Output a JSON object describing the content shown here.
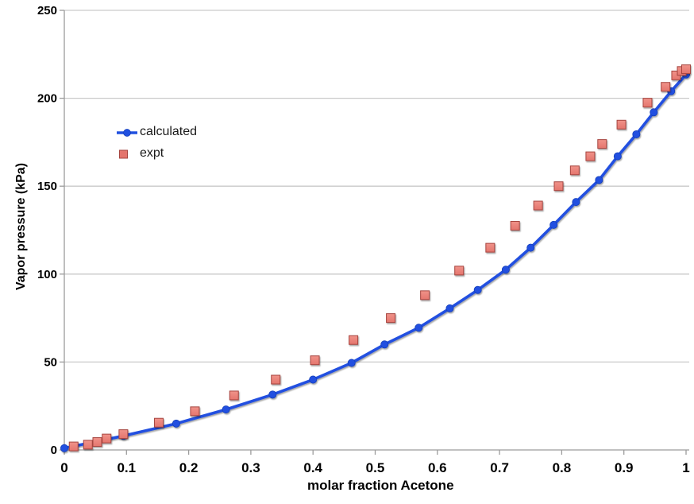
{
  "colors": {
    "calculated": "#2050E0",
    "calculated_edge": "#163FB8",
    "expt_fill": "#E4756D",
    "expt_fill_light": "#F0938A",
    "expt_border": "#A6453F",
    "gridline": "#C9C9C9",
    "axis": "#9C9C9C",
    "text": "#000000"
  },
  "chart_data": {
    "type": "scatter",
    "title": "",
    "xlabel": "molar fraction Acetone",
    "ylabel": "Vapor pressure (kPa)",
    "xlim": [
      0,
      1
    ],
    "ylim": [
      0,
      250
    ],
    "grid": "horizontal-only",
    "legend_position": "inside-upper-left",
    "x_ticks": [
      {
        "label": "0",
        "value": 0
      },
      {
        "label": "0.1",
        "value": 0.1
      },
      {
        "label": "0.2",
        "value": 0.2
      },
      {
        "label": "0.3",
        "value": 0.3
      },
      {
        "label": "0.4",
        "value": 0.4
      },
      {
        "label": "0.5",
        "value": 0.5
      },
      {
        "label": "0.6",
        "value": 0.6
      },
      {
        "label": "0.7",
        "value": 0.7
      },
      {
        "label": "0.8",
        "value": 0.8
      },
      {
        "label": "0.9",
        "value": 0.9
      },
      {
        "label": "1",
        "value": 1
      }
    ],
    "y_ticks": [
      {
        "label": "0",
        "value": 0
      },
      {
        "label": "50",
        "value": 50
      },
      {
        "label": "100",
        "value": 100
      },
      {
        "label": "150",
        "value": 150
      },
      {
        "label": "200",
        "value": 200
      },
      {
        "label": "250",
        "value": 250
      }
    ],
    "series": [
      {
        "name": "calculated",
        "type": "line",
        "marker": "circle",
        "color": "#2050E0",
        "points": [
          [
            0,
            1
          ],
          [
            0.095,
            8
          ],
          [
            0.18,
            15
          ],
          [
            0.26,
            23
          ],
          [
            0.335,
            31.5
          ],
          [
            0.4,
            40
          ],
          [
            0.462,
            49.5
          ],
          [
            0.515,
            60
          ],
          [
            0.57,
            69.5
          ],
          [
            0.62,
            80.5
          ],
          [
            0.665,
            91
          ],
          [
            0.71,
            102.5
          ],
          [
            0.75,
            115
          ],
          [
            0.787,
            128
          ],
          [
            0.823,
            141
          ],
          [
            0.86,
            153.5
          ],
          [
            0.89,
            167
          ],
          [
            0.92,
            179.5
          ],
          [
            0.948,
            192
          ],
          [
            0.976,
            204
          ],
          [
            1.0,
            213.5
          ]
        ]
      },
      {
        "name": "expt",
        "type": "scatter",
        "marker": "square",
        "color": "#E4756D",
        "border_color": "#A6453F",
        "points": [
          [
            0.015,
            2
          ],
          [
            0.038,
            3
          ],
          [
            0.053,
            4.5
          ],
          [
            0.068,
            6.5
          ],
          [
            0.095,
            9
          ],
          [
            0.152,
            15.5
          ],
          [
            0.21,
            22
          ],
          [
            0.273,
            31
          ],
          [
            0.34,
            40
          ],
          [
            0.403,
            51
          ],
          [
            0.465,
            62.5
          ],
          [
            0.525,
            75
          ],
          [
            0.58,
            88
          ],
          [
            0.635,
            102
          ],
          [
            0.685,
            115
          ],
          [
            0.725,
            127.5
          ],
          [
            0.762,
            139
          ],
          [
            0.795,
            150
          ],
          [
            0.821,
            159
          ],
          [
            0.846,
            167
          ],
          [
            0.865,
            174
          ],
          [
            0.896,
            185
          ],
          [
            0.938,
            197.5
          ],
          [
            0.967,
            206.5
          ],
          [
            0.984,
            213
          ],
          [
            0.993,
            215.5
          ],
          [
            1.0,
            216.5
          ]
        ]
      }
    ]
  }
}
